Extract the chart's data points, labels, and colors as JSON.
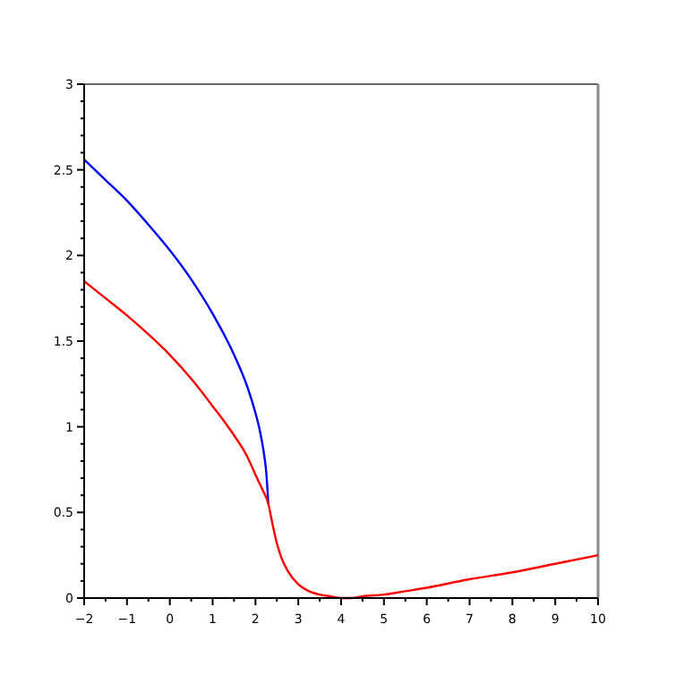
{
  "chart_data": {
    "type": "line",
    "xlim": [
      -2,
      10
    ],
    "ylim": [
      0,
      3
    ],
    "xticks": [
      -2,
      -1,
      0,
      1,
      2,
      3,
      4,
      5,
      6,
      7,
      8,
      9,
      10
    ],
    "yticks": [
      0,
      0.5,
      1,
      1.5,
      2,
      2.5,
      3
    ],
    "grid": false,
    "series": [
      {
        "color": "#0000ff",
        "x": [
          -2,
          -1.5,
          -1,
          -0.5,
          0,
          0.5,
          1,
          1.5,
          1.8,
          2,
          2.1,
          2.2,
          2.25,
          2.3
        ],
        "values": [
          2.56,
          2.44,
          2.32,
          2.18,
          2.03,
          1.86,
          1.66,
          1.42,
          1.24,
          1.08,
          0.98,
          0.84,
          0.74,
          0.55
        ]
      },
      {
        "color": "#ff0000",
        "x": [
          -2,
          -1.5,
          -1,
          -0.5,
          0,
          0.5,
          1,
          1.5,
          1.8,
          2,
          2.15,
          2.3,
          2.4,
          2.5,
          2.6,
          2.75,
          3,
          3.25,
          3.5,
          3.75,
          4,
          4.25,
          4.5,
          5,
          5.5,
          6,
          7,
          8,
          9,
          10
        ],
        "values": [
          1.85,
          1.75,
          1.65,
          1.54,
          1.42,
          1.28,
          1.12,
          0.95,
          0.83,
          0.72,
          0.64,
          0.55,
          0.43,
          0.32,
          0.24,
          0.16,
          0.08,
          0.04,
          0.02,
          0.01,
          0,
          0,
          0.01,
          0.02,
          0.04,
          0.06,
          0.11,
          0.15,
          0.2,
          0.25
        ]
      }
    ]
  }
}
